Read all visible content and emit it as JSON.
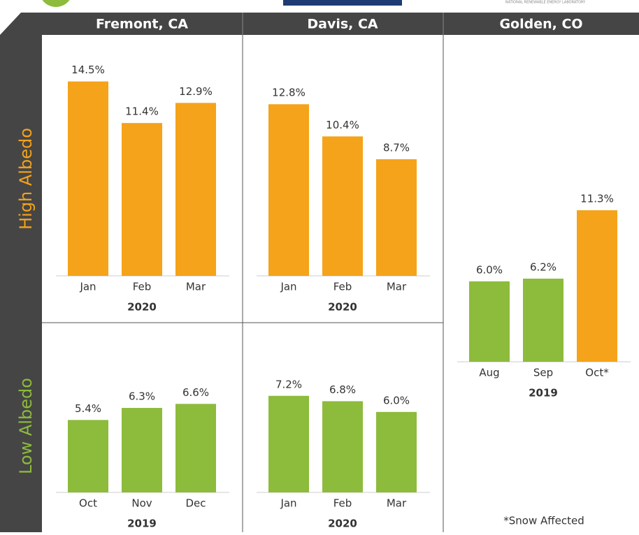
{
  "header": {
    "columns": [
      "Fremont, CA",
      "Davis, CA",
      "Golden, CO"
    ],
    "rows": [
      "High Albedo",
      "Low Albedo"
    ],
    "logo_text": "NATIONAL RENEWABLE ENERGY LABORATORY"
  },
  "chart_data": [
    {
      "type": "bar",
      "categories": [
        "Jan",
        "Feb",
        "Mar"
      ],
      "values": [
        14.5,
        11.4,
        12.9
      ],
      "value_labels": [
        "14.5%",
        "11.4%",
        "12.9%"
      ],
      "colors": [
        "#f5a31a",
        "#f5a31a",
        "#f5a31a"
      ],
      "xlabel": "2020"
    },
    {
      "type": "bar",
      "categories": [
        "Jan",
        "Feb",
        "Mar"
      ],
      "values": [
        12.8,
        10.4,
        8.7
      ],
      "value_labels": [
        "12.8%",
        "10.4%",
        "8.7%"
      ],
      "colors": [
        "#f5a31a",
        "#f5a31a",
        "#f5a31a"
      ],
      "xlabel": "2020"
    },
    {
      "type": "bar",
      "categories": [
        "Aug",
        "Sep",
        "Oct*"
      ],
      "values": [
        6.0,
        6.2,
        11.3
      ],
      "value_labels": [
        "6.0%",
        "6.2%",
        "11.3%"
      ],
      "colors": [
        "#8dbb3c",
        "#8dbb3c",
        "#f5a31a"
      ],
      "xlabel": "2019",
      "note": "*Snow Affected"
    },
    {
      "type": "bar",
      "categories": [
        "Oct",
        "Nov",
        "Dec"
      ],
      "values": [
        5.4,
        6.3,
        6.6
      ],
      "value_labels": [
        "5.4%",
        "6.3%",
        "6.6%"
      ],
      "colors": [
        "#8dbb3c",
        "#8dbb3c",
        "#8dbb3c"
      ],
      "xlabel": "2019"
    },
    {
      "type": "bar",
      "categories": [
        "Jan",
        "Feb",
        "Mar"
      ],
      "values": [
        7.2,
        6.8,
        6.0
      ],
      "value_labels": [
        "7.2%",
        "6.8%",
        "6.0%"
      ],
      "colors": [
        "#8dbb3c",
        "#8dbb3c",
        "#8dbb3c"
      ],
      "xlabel": "2020"
    }
  ]
}
